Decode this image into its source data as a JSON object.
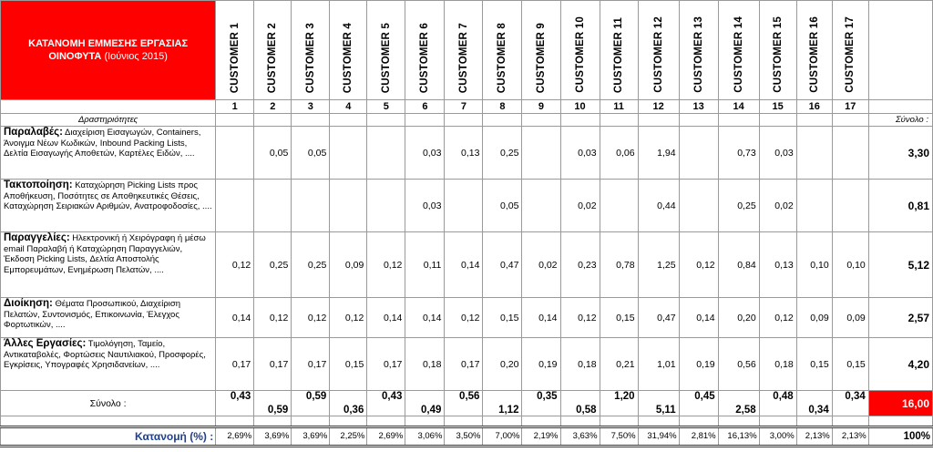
{
  "title": {
    "line1": "ΚΑΤΑΝΟΜΗ ΕΜΜΕΣΗΣ ΕΡΓΑΣΙΑΣ",
    "line2": "ΟΙΝΟΦΥΤΑ",
    "period": " (Ιούνιος 2015)"
  },
  "customers": [
    "CUSTOMER 1",
    "CUSTOMER 2",
    "CUSTOMER 3",
    "CUSTOMER 4",
    "CUSTOMER 5",
    "CUSTOMER 6",
    "CUSTOMER 7",
    "CUSTOMER 8",
    "CUSTOMER 9",
    "CUSTOMER 10",
    "CUSTOMER 11",
    "CUSTOMER 12",
    "CUSTOMER 13",
    "CUSTOMER 14",
    "CUSTOMER 15",
    "CUSTOMER 16",
    "CUSTOMER 17"
  ],
  "numbers": [
    "1",
    "2",
    "3",
    "4",
    "5",
    "6",
    "7",
    "8",
    "9",
    "10",
    "11",
    "12",
    "13",
    "14",
    "15",
    "16",
    "17"
  ],
  "activities_header": "Δραστηριότητες",
  "sum_header": "Σύνολο :",
  "rows": [
    {
      "head": "Παραλαβές:",
      "desc": " Διαχείριση Εισαγωγών, Containers, Άνοιγμα Νέων Κωδικών, Inbound Packing Lists, Δελτία Εισαγωγής Αποθετών, Καρτέλες Ειδών, ....",
      "values": [
        "",
        "0,05",
        "0,05",
        "",
        "",
        "0,03",
        "0,13",
        "0,25",
        "",
        "0,03",
        "0,06",
        "1,94",
        "",
        "0,73",
        "0,03",
        "",
        ""
      ],
      "sum": "3,30"
    },
    {
      "head": "Τακτοποίηση:",
      "desc": " Καταχώρηση Picking Lists προς Αποθήκευση, Ποσότητες σε Αποθηκευτικές Θέσεις, Καταχώρηση Σειριακών Αριθμών, Ανατροφοδοσίες, ....",
      "values": [
        "",
        "",
        "",
        "",
        "",
        "0,03",
        "",
        "0,05",
        "",
        "0,02",
        "",
        "0,44",
        "",
        "0,25",
        "0,02",
        "",
        ""
      ],
      "sum": "0,81"
    },
    {
      "head": "Παραγγελίες:",
      "desc": " Ηλεκτρονική ή Χειρόγραφη ή μέσω email Παραλαβή ή Καταχώρηση Παραγγελιών, Έκδοση Picking Lists, Δελτία Αποστολής Εμπορευμάτων, Ενημέρωση Πελατών, ....",
      "values": [
        "0,12",
        "0,25",
        "0,25",
        "0,09",
        "0,12",
        "0,11",
        "0,14",
        "0,47",
        "0,02",
        "0,23",
        "0,78",
        "1,25",
        "0,12",
        "0,84",
        "0,13",
        "0,10",
        "0,10"
      ],
      "sum": "5,12"
    },
    {
      "head": "Διοίκηση:",
      "desc": " Θέματα Προσωπικού, Διαχείριση Πελατών, Συντονισμός, Επικοινωνία, Έλεγχος Φορτωτικών, ....",
      "values": [
        "0,14",
        "0,12",
        "0,12",
        "0,12",
        "0,14",
        "0,14",
        "0,12",
        "0,15",
        "0,14",
        "0,12",
        "0,15",
        "0,47",
        "0,14",
        "0,20",
        "0,12",
        "0,09",
        "0,09"
      ],
      "sum": "2,57"
    },
    {
      "head": "Άλλες Εργασίες:",
      "desc": " Τιμολόγηση, Ταμείο, Αντικαταβολές, Φορτώσεις Ναυτιλιακού, Προσφορές, Εγκρίσεις, Υπογραφές Χρησιδανείων, ....",
      "values": [
        "0,17",
        "0,17",
        "0,17",
        "0,15",
        "0,17",
        "0,18",
        "0,17",
        "0,20",
        "0,19",
        "0,18",
        "0,21",
        "1,01",
        "0,19",
        "0,56",
        "0,18",
        "0,15",
        "0,15"
      ],
      "sum": "4,20"
    }
  ],
  "totals_label": "Σύνολο :",
  "totals": [
    "0,43",
    "0,59",
    "0,59",
    "0,36",
    "0,43",
    "0,49",
    "0,56",
    "1,12",
    "0,35",
    "0,58",
    "1,20",
    "5,11",
    "0,45",
    "2,58",
    "0,48",
    "0,34",
    "0,34"
  ],
  "totals_pos": [
    "up",
    "down",
    "up",
    "down",
    "up",
    "down",
    "up",
    "down",
    "up",
    "down",
    "up",
    "down",
    "up",
    "down",
    "up",
    "down",
    "up"
  ],
  "grand_total": "16,00",
  "pct_label": "Κατανομή (%) :",
  "percentages": [
    "2,69%",
    "3,69%",
    "3,69%",
    "2,25%",
    "2,69%",
    "3,06%",
    "3,50%",
    "7,00%",
    "2,19%",
    "3,63%",
    "7,50%",
    "31,94%",
    "2,81%",
    "16,13%",
    "3,00%",
    "2,13%",
    "2,13%"
  ],
  "pct_total": "100%",
  "colors": {
    "accent_red": "#ff0000",
    "pct_label_blue": "#1f3f8f"
  }
}
